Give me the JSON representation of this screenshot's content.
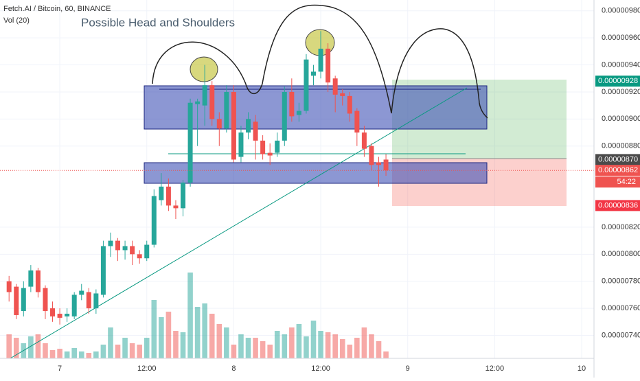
{
  "chart_data": {
    "type": "candlestick",
    "title": "Fetch.AI / Bitcoin, 60, BINANCE",
    "indicator": "Vol (20)",
    "annotation": "Possible Head and Shoulders",
    "x": [
      0,
      1,
      2,
      3,
      4,
      5,
      6,
      7,
      8,
      9,
      10,
      11,
      12,
      13,
      14,
      15,
      16,
      17,
      18,
      19,
      20,
      21,
      22,
      23,
      24,
      25,
      26,
      27,
      28,
      29,
      30,
      31,
      32,
      33,
      34,
      35,
      36,
      37,
      38,
      39,
      40,
      41,
      42,
      43,
      44,
      45,
      46,
      47,
      48,
      49,
      50,
      51,
      52
    ],
    "open": [
      7.8e-06,
      7.76e-06,
      7.58e-06,
      7.76e-06,
      7.88e-06,
      7.75e-06,
      7.6e-06,
      7.56e-06,
      7.54e-06,
      7.54e-06,
      7.7e-06,
      7.72e-06,
      7.6e-06,
      7.7e-06,
      8.06e-06,
      8.1e-06,
      8.03e-06,
      8.06e-06,
      8e-06,
      7.97e-06,
      8.07e-06,
      8.4e-06,
      8.5e-06,
      8.36e-06,
      8.34e-06,
      8.53e-06,
      9.11e-06,
      9.1e-06,
      9.25e-06,
      9e-06,
      8.93e-06,
      9.2e-06,
      8.72e-06,
      8.9e-06,
      8.98e-06,
      8.84e-06,
      8.75e-06,
      8.75e-06,
      8.84e-06,
      9.2e-06,
      9.03e-06,
      9.06e-06,
      9.32e-06,
      9.35e-06,
      9.52e-06,
      9.3e-06,
      9.19e-06,
      9.17e-06,
      9.06e-06,
      8.9e-06,
      8.8e-06,
      8.68e-06,
      8.7e-06
    ],
    "high": [
      7.84e-06,
      7.78e-06,
      7.8e-06,
      7.92e-06,
      7.9e-06,
      7.77e-06,
      7.65e-06,
      7.6e-06,
      7.6e-06,
      7.72e-06,
      7.78e-06,
      7.75e-06,
      7.74e-06,
      8.1e-06,
      8.16e-06,
      8.12e-06,
      8.1e-06,
      8.1e-06,
      8.03e-06,
      8.1e-06,
      8.48e-06,
      8.6e-06,
      8.56e-06,
      8.4e-06,
      8.55e-06,
      9.15e-06,
      9.15e-06,
      9.4e-06,
      9.28e-06,
      9.05e-06,
      9.25e-06,
      9.25e-06,
      8.95e-06,
      9.05e-06,
      9.03e-06,
      8.88e-06,
      8.82e-06,
      8.9e-06,
      9.24e-06,
      9.3e-06,
      9.12e-06,
      9.48e-06,
      9.4e-06,
      9.65e-06,
      9.56e-06,
      9.32e-06,
      9.22e-06,
      9.2e-06,
      9.08e-06,
      8.95e-06,
      8.82e-06,
      8.72e-06,
      8.74e-06
    ],
    "low": [
      7.65e-06,
      7.52e-06,
      7.54e-06,
      7.72e-06,
      7.68e-06,
      7.52e-06,
      7.5e-06,
      7.48e-06,
      7.5e-06,
      7.52e-06,
      7.66e-06,
      7.56e-06,
      7.56e-06,
      7.68e-06,
      7.98e-06,
      7.95e-06,
      7.96e-06,
      7.92e-06,
      7.93e-06,
      7.95e-06,
      8.05e-06,
      8.36e-06,
      8.32e-06,
      8.26e-06,
      8.28e-06,
      8.5e-06,
      8.8e-06,
      8.95e-06,
      8.95e-06,
      8.8e-06,
      8.9e-06,
      8.68e-06,
      8.68e-06,
      8.85e-06,
      8.7e-06,
      8.7e-06,
      8.66e-06,
      8.72e-06,
      8.8e-06,
      8.98e-06,
      8.98e-06,
      9.04e-06,
      9.25e-06,
      9.3e-06,
      9.2e-06,
      9.05e-06,
      9.1e-06,
      8.98e-06,
      8.8e-06,
      8.72e-06,
      8.62e-06,
      8.5e-06,
      8.58e-06
    ],
    "close": [
      7.72e-06,
      7.55e-06,
      7.75e-06,
      7.88e-06,
      7.72e-06,
      7.58e-06,
      7.54e-06,
      7.53e-06,
      7.56e-06,
      7.7e-06,
      7.73e-06,
      7.6e-06,
      7.71e-06,
      8.06e-06,
      8.1e-06,
      8.03e-06,
      8.06e-06,
      8e-06,
      7.97e-06,
      8.07e-06,
      8.43e-06,
      8.5e-06,
      8.36e-06,
      8.34e-06,
      8.53e-06,
      9.12e-06,
      9.13e-06,
      9.25e-06,
      9e-06,
      8.93e-06,
      9.2e-06,
      8.7e-06,
      8.9e-06,
      9e-06,
      8.84e-06,
      8.74e-06,
      8.73e-06,
      8.84e-06,
      9.2e-06,
      9.02e-06,
      9.06e-06,
      9.44e-06,
      9.35e-06,
      9.52e-06,
      9.27e-06,
      9.18e-06,
      9.17e-06,
      9.04e-06,
      8.9e-06,
      8.78e-06,
      8.66e-06,
      8.66e-06,
      8.62e-06
    ],
    "volume": [
      35,
      30,
      22,
      32,
      35,
      22,
      12,
      14,
      10,
      15,
      10,
      8,
      10,
      20,
      45,
      20,
      30,
      22,
      20,
      30,
      85,
      60,
      68,
      40,
      38,
      125,
      75,
      80,
      65,
      50,
      45,
      20,
      35,
      30,
      30,
      25,
      20,
      40,
      35,
      45,
      50,
      32,
      55,
      40,
      38,
      35,
      28,
      20,
      30,
      45,
      35,
      25,
      10
    ],
    "up_color": "#26a69a",
    "down_color": "#ef5350",
    "xlim": [
      -1.25,
      80.7
    ],
    "xticks": [
      {
        "value": 7,
        "label": "7"
      },
      {
        "value": 19,
        "label": "12:00"
      },
      {
        "value": 31,
        "label": "8"
      },
      {
        "value": 43,
        "label": "12:00"
      },
      {
        "value": 55,
        "label": "9"
      },
      {
        "value": 67,
        "label": "12:00"
      },
      {
        "value": 79,
        "label": "10"
      }
    ],
    "ylim": [
      7.23e-06,
      9.88e-06
    ],
    "yticks": [
      {
        "value": 9.8e-06,
        "label": "0.00000980"
      },
      {
        "value": 9.6e-06,
        "label": "0.00000960"
      },
      {
        "value": 9.4e-06,
        "label": "0.00000940"
      },
      {
        "value": 9.2e-06,
        "label": "0.00000920"
      },
      {
        "value": 9e-06,
        "label": "0.00000900"
      },
      {
        "value": 8.8e-06,
        "label": "0.00000880"
      },
      {
        "value": 8.2e-06,
        "label": "0.00000820"
      },
      {
        "value": 8e-06,
        "label": "0.00000800"
      },
      {
        "value": 7.8e-06,
        "label": "0.00000780"
      },
      {
        "value": 7.6e-06,
        "label": "0.00000760"
      },
      {
        "value": 7.4e-06,
        "label": "0.00000740"
      }
    ],
    "y2lim": [
      0,
      522
    ],
    "grid": true,
    "price_labels": [
      {
        "value": 9.28e-06,
        "label": "0.00000928",
        "color": "#089981"
      },
      {
        "value": 8.7e-06,
        "label": "0.00000870",
        "color": "#4a4a4a"
      },
      {
        "value": 8.62e-06,
        "label": "0.00000862",
        "color": "#ef5350"
      },
      {
        "value": 8.36e-06,
        "label": "0.00000836",
        "color": "#f23645"
      }
    ],
    "countdown": "54:22"
  }
}
